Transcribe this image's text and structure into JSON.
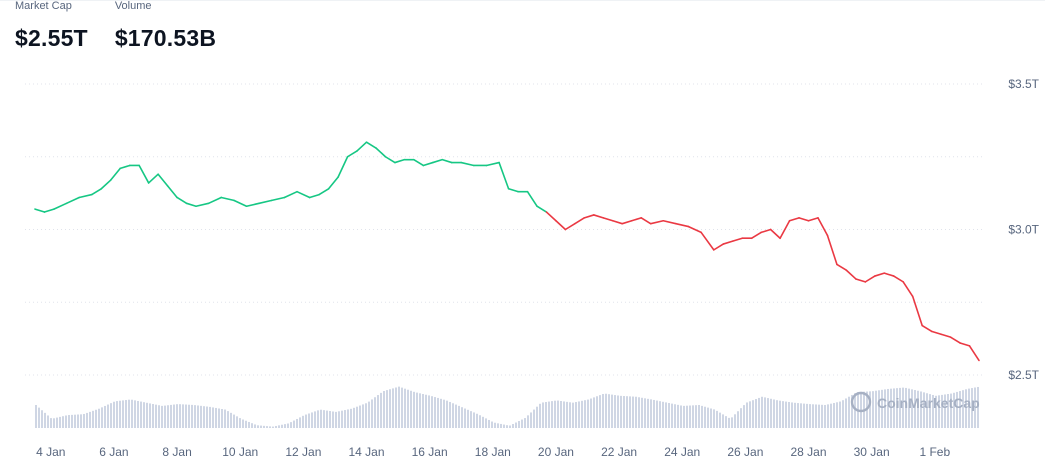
{
  "stats": {
    "market_cap_label": "Market Cap",
    "market_cap_value": "$2.55T",
    "volume_label": "Volume",
    "volume_value": "$170.53B"
  },
  "watermark": "CoinMarketCap",
  "colors": {
    "up": "#16c784",
    "down": "#ea3943",
    "volume": "#cfd6e4",
    "grid": "#e0e3eb"
  },
  "chart_data": {
    "type": "line",
    "baseline": 3.06,
    "y_ticks": [
      "$3.5T",
      "$3.0T",
      "$2.5T"
    ],
    "y_tick_values": [
      3.5,
      3.0,
      2.5
    ],
    "ylim": [
      2.5,
      3.5
    ],
    "x_ticks": [
      "4 Jan",
      "6 Jan",
      "8 Jan",
      "10 Jan",
      "12 Jan",
      "14 Jan",
      "16 Jan",
      "18 Jan",
      "20 Jan",
      "22 Jan",
      "24 Jan",
      "26 Jan",
      "28 Jan",
      "30 Jan",
      "1 Feb"
    ],
    "x_tick_days": [
      4,
      6,
      8,
      10,
      12,
      14,
      16,
      18,
      20,
      22,
      24,
      26,
      28,
      30,
      32
    ],
    "series": [
      {
        "x": [
          3.5,
          3.8,
          4.1,
          4.5,
          4.9,
          5.3,
          5.6,
          5.9,
          6.2,
          6.5,
          6.8,
          7.1,
          7.4,
          7.7,
          8.0,
          8.3,
          8.6,
          9.0,
          9.4,
          9.8,
          10.2,
          10.6,
          11.0,
          11.4,
          11.8,
          12.2,
          12.5,
          12.8,
          13.1,
          13.4,
          13.7,
          14.0,
          14.3,
          14.6,
          14.9,
          15.2,
          15.5,
          15.8,
          16.1,
          16.4,
          16.7,
          17.0,
          17.4,
          17.8,
          18.2,
          18.5,
          18.8,
          19.1,
          19.4,
          19.7,
          20.0,
          20.3,
          20.6,
          20.9,
          21.2,
          21.5,
          21.8,
          22.1,
          22.4,
          22.7,
          23.0,
          23.4,
          23.8,
          24.2,
          24.6,
          25.0,
          25.3,
          25.6,
          25.9,
          26.2,
          26.5,
          26.8,
          27.1,
          27.4,
          27.7,
          28.0,
          28.3,
          28.6,
          28.9,
          29.2,
          29.5,
          29.8,
          30.1,
          30.4,
          30.7,
          31.0,
          31.3,
          31.6,
          31.9,
          32.2,
          32.5,
          32.8,
          33.1,
          33.4
        ],
        "y": [
          3.07,
          3.06,
          3.07,
          3.09,
          3.11,
          3.12,
          3.14,
          3.17,
          3.21,
          3.22,
          3.22,
          3.16,
          3.19,
          3.15,
          3.11,
          3.09,
          3.08,
          3.09,
          3.11,
          3.1,
          3.08,
          3.09,
          3.1,
          3.11,
          3.13,
          3.11,
          3.12,
          3.14,
          3.18,
          3.25,
          3.27,
          3.3,
          3.28,
          3.25,
          3.23,
          3.24,
          3.24,
          3.22,
          3.23,
          3.24,
          3.23,
          3.23,
          3.22,
          3.22,
          3.23,
          3.14,
          3.13,
          3.13,
          3.08,
          3.06,
          3.03,
          3.0,
          3.02,
          3.04,
          3.05,
          3.04,
          3.03,
          3.02,
          3.03,
          3.04,
          3.02,
          3.03,
          3.02,
          3.01,
          2.99,
          2.93,
          2.95,
          2.96,
          2.97,
          2.97,
          2.99,
          3.0,
          2.97,
          3.03,
          3.04,
          3.03,
          3.04,
          2.98,
          2.88,
          2.86,
          2.83,
          2.82,
          2.84,
          2.85,
          2.84,
          2.82,
          2.77,
          2.67,
          2.65,
          2.64,
          2.63,
          2.61,
          2.6,
          2.55
        ]
      }
    ],
    "volume": {
      "x": [
        3.5,
        4.0,
        4.5,
        5.0,
        5.5,
        6.0,
        6.5,
        7.0,
        7.5,
        8.0,
        8.5,
        9.0,
        9.5,
        10.0,
        10.5,
        11.0,
        11.5,
        12.0,
        12.5,
        13.0,
        13.5,
        14.0,
        14.5,
        15.0,
        15.5,
        16.0,
        16.5,
        17.0,
        17.5,
        18.0,
        18.5,
        19.0,
        19.5,
        20.0,
        20.5,
        21.0,
        21.5,
        22.0,
        22.5,
        23.0,
        23.5,
        24.0,
        24.5,
        25.0,
        25.5,
        26.0,
        26.5,
        27.0,
        27.5,
        28.0,
        28.5,
        29.0,
        29.5,
        30.0,
        30.5,
        31.0,
        31.5,
        32.0,
        32.5,
        33.0,
        33.4
      ],
      "y": [
        0.5,
        0.2,
        0.28,
        0.3,
        0.42,
        0.58,
        0.62,
        0.55,
        0.48,
        0.52,
        0.5,
        0.46,
        0.4,
        0.2,
        0.06,
        0.03,
        0.1,
        0.28,
        0.4,
        0.35,
        0.42,
        0.55,
        0.8,
        0.9,
        0.78,
        0.7,
        0.6,
        0.45,
        0.3,
        0.12,
        0.05,
        0.22,
        0.55,
        0.6,
        0.55,
        0.62,
        0.75,
        0.7,
        0.68,
        0.62,
        0.55,
        0.48,
        0.5,
        0.4,
        0.2,
        0.55,
        0.68,
        0.6,
        0.55,
        0.52,
        0.5,
        0.58,
        0.78,
        0.8,
        0.85,
        0.88,
        0.8,
        0.7,
        0.75,
        0.85,
        0.9
      ]
    }
  }
}
